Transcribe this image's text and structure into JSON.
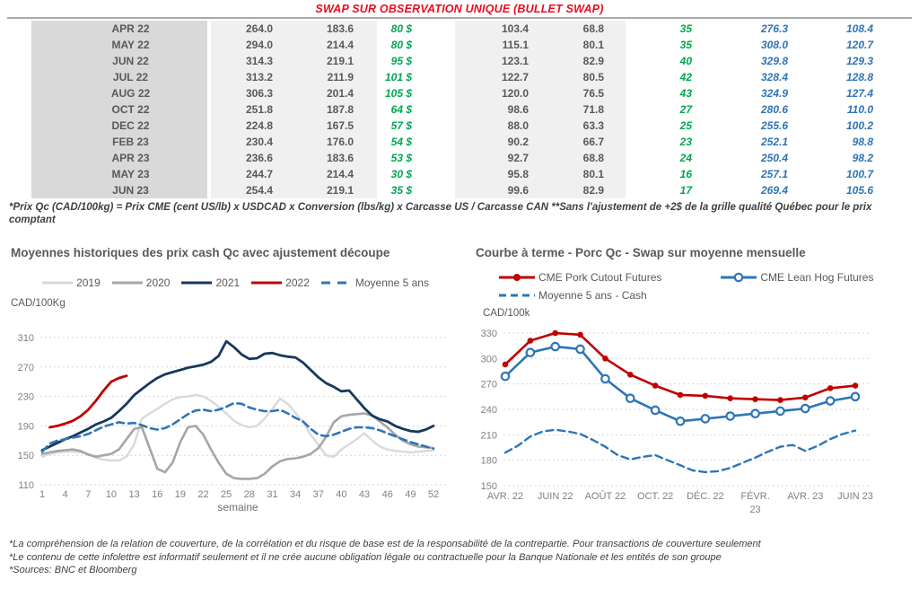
{
  "title": "SWAP SUR OBSERVATION UNIQUE (BULLET SWAP)",
  "table": {
    "rows": [
      {
        "month": "APR 22",
        "c1": "264.0",
        "c2": "183.6",
        "green1": "80 $",
        "c4": "103.4",
        "c5": "68.8",
        "green2": "35",
        "blue1": "276.3",
        "blue2": "108.4"
      },
      {
        "month": "MAY 22",
        "c1": "294.0",
        "c2": "214.4",
        "green1": "80 $",
        "c4": "115.1",
        "c5": "80.1",
        "green2": "35",
        "blue1": "308.0",
        "blue2": "120.7"
      },
      {
        "month": "JUN 22",
        "c1": "314.3",
        "c2": "219.1",
        "green1": "95 $",
        "c4": "123.1",
        "c5": "82.9",
        "green2": "40",
        "blue1": "329.8",
        "blue2": "129.3"
      },
      {
        "month": "JUL 22",
        "c1": "313.2",
        "c2": "211.9",
        "green1": "101 $",
        "c4": "122.7",
        "c5": "80.5",
        "green2": "42",
        "blue1": "328.4",
        "blue2": "128.8"
      },
      {
        "month": "AUG 22",
        "c1": "306.3",
        "c2": "201.4",
        "green1": "105 $",
        "c4": "120.0",
        "c5": "76.5",
        "green2": "43",
        "blue1": "324.9",
        "blue2": "127.4"
      },
      {
        "month": "OCT 22",
        "c1": "251.8",
        "c2": "187.8",
        "green1": "64 $",
        "c4": "98.6",
        "c5": "71.8",
        "green2": "27",
        "blue1": "280.6",
        "blue2": "110.0"
      },
      {
        "month": "DEC 22",
        "c1": "224.8",
        "c2": "167.5",
        "green1": "57 $",
        "c4": "88.0",
        "c5": "63.3",
        "green2": "25",
        "blue1": "255.6",
        "blue2": "100.2"
      },
      {
        "month": "FEB 23",
        "c1": "230.4",
        "c2": "176.0",
        "green1": "54 $",
        "c4": "90.2",
        "c5": "66.7",
        "green2": "23",
        "blue1": "252.1",
        "blue2": "98.8"
      },
      {
        "month": "APR 23",
        "c1": "236.6",
        "c2": "183.6",
        "green1": "53 $",
        "c4": "92.7",
        "c5": "68.8",
        "green2": "24",
        "blue1": "250.4",
        "blue2": "98.2"
      },
      {
        "month": "MAY 23",
        "c1": "244.7",
        "c2": "214.4",
        "green1": "30 $",
        "c4": "95.8",
        "c5": "80.1",
        "green2": "16",
        "blue1": "257.1",
        "blue2": "100.7"
      },
      {
        "month": "JUN 23",
        "c1": "254.4",
        "c2": "219.1",
        "green1": "35 $",
        "c4": "99.6",
        "c5": "82.9",
        "green2": "17",
        "blue1": "269.4",
        "blue2": "105.6"
      }
    ]
  },
  "table_footnote": "*Prix Qc (CAD/100kg) = Prix CME (cent US/lb) x USDCAD x Conversion (lbs/kg) x Carcasse US / Carcasse CAN **Sans l'ajustement de +2$ de la grille qualité Québec pour le prix comptant",
  "footnotes": [
    "*La compréhension de la relation de couverture, de la corrélation et du risque de base est de la responsabilité de la contrepartie. Pour transactions de couverture seulement",
    "*Le contenu de cette infolettre est informatif seulement et il ne crée aucune obligation légale ou contractuelle pour la Banque Nationale et les entités de son groupe",
    "*Sources: BNC et Bloomberg"
  ],
  "colors": {
    "title_red": "#ea0c1e",
    "green_value": "#00a651",
    "blue_value": "#2e74b5",
    "navy_line": "#17375e",
    "red_line": "#c00000",
    "blue_line": "#2e75b6",
    "gray_2020": "#a6a6a6",
    "gray_2019": "#d9d9d9"
  },
  "chart_data": [
    {
      "type": "line",
      "title": "Moyennes historiques des prix cash Qc avec ajustement découpe",
      "ylabel": "CAD/100Kg",
      "xlabel": "semaine",
      "ylim": [
        110,
        310
      ],
      "yticks": [
        110,
        150,
        190,
        230,
        270,
        310
      ],
      "xlim": [
        1,
        52
      ],
      "xticks": [
        1,
        4,
        7,
        10,
        13,
        16,
        19,
        22,
        25,
        28,
        31,
        34,
        37,
        40,
        43,
        46,
        49,
        52
      ],
      "grid": true,
      "legend_position": "top",
      "series": [
        {
          "name": "2019",
          "color": "#d9d9d9",
          "swatch": "solid",
          "width": 2.4,
          "xstart": 1,
          "values": [
            148,
            152,
            154,
            155,
            155,
            154,
            152,
            147,
            144,
            143,
            143,
            148,
            165,
            200,
            207,
            213,
            220,
            226,
            229,
            230,
            232,
            230,
            224,
            216,
            207,
            197,
            191,
            188,
            190,
            200,
            213,
            227,
            220,
            208,
            195,
            178,
            164,
            150,
            148,
            158,
            165,
            172,
            180,
            170,
            162,
            158,
            156,
            155,
            154,
            155,
            156,
            157
          ]
        },
        {
          "name": "2020",
          "color": "#a6a6a6",
          "swatch": "solid",
          "width": 2.6,
          "xstart": 1,
          "values": [
            152,
            154,
            156,
            157,
            158,
            156,
            151,
            148,
            150,
            152,
            158,
            172,
            186,
            188,
            160,
            132,
            127,
            140,
            168,
            188,
            190,
            178,
            158,
            140,
            125,
            119,
            118,
            118,
            119,
            125,
            135,
            142,
            145,
            146,
            148,
            152,
            160,
            175,
            195,
            203,
            205,
            206,
            207,
            204,
            196,
            188,
            178,
            170,
            165,
            162,
            161,
            160
          ]
        },
        {
          "name": "2021",
          "color": "#17375e",
          "swatch": "solid",
          "width": 2.8,
          "xstart": 1,
          "values": [
            157,
            162,
            167,
            172,
            176,
            181,
            186,
            192,
            196,
            201,
            210,
            220,
            232,
            240,
            248,
            255,
            260,
            263,
            266,
            269,
            271,
            273,
            277,
            285,
            305,
            297,
            287,
            281,
            282,
            288,
            289,
            286,
            284,
            283,
            276,
            266,
            256,
            248,
            243,
            237,
            238,
            226,
            214,
            204,
            199,
            196,
            190,
            186,
            183,
            182,
            185,
            190
          ]
        },
        {
          "name": "2022",
          "color": "#c00000",
          "swatch": "solid",
          "width": 2.8,
          "xstart": 2,
          "values": [
            188,
            190,
            193,
            197,
            203,
            212,
            224,
            238,
            250,
            255,
            258
          ]
        },
        {
          "name": "Moyenne 5 ans",
          "color": "#2e75b6",
          "swatch": "dashed",
          "dash": "8 5",
          "width": 2.6,
          "xstart": 1,
          "values": [
            155,
            166,
            170,
            172,
            174,
            176,
            179,
            184,
            189,
            192,
            195,
            193,
            194,
            191,
            187,
            185,
            187,
            192,
            199,
            206,
            211,
            212,
            210,
            212,
            216,
            221,
            220,
            215,
            212,
            210,
            210,
            212,
            207,
            201,
            196,
            186,
            178,
            176,
            178,
            182,
            186,
            188,
            188,
            187,
            184,
            180,
            176,
            172,
            168,
            165,
            162,
            159
          ]
        }
      ]
    },
    {
      "type": "line",
      "title": "Courbe à terme - Porc Qc - Swap sur moyenne mensuelle",
      "ylabel": "CAD/100k",
      "xlabel": "",
      "ylim": [
        150,
        330
      ],
      "yticks": [
        150,
        180,
        210,
        240,
        270,
        300,
        330
      ],
      "xlim": [
        0,
        14
      ],
      "xtick_labels": [
        {
          "x": 0,
          "lines": [
            "AVR. 22"
          ]
        },
        {
          "x": 2,
          "lines": [
            "JUIN 22"
          ]
        },
        {
          "x": 4,
          "lines": [
            "AOÛT 22"
          ]
        },
        {
          "x": 6,
          "lines": [
            "OCT. 22"
          ]
        },
        {
          "x": 8,
          "lines": [
            "DÉC. 22"
          ]
        },
        {
          "x": 10,
          "lines": [
            "FÉVR.",
            "23"
          ]
        },
        {
          "x": 12,
          "lines": [
            "AVR. 23"
          ]
        },
        {
          "x": 14,
          "lines": [
            "JUIN 23"
          ]
        }
      ],
      "grid": true,
      "legend_position": "top",
      "series": [
        {
          "name": "CME Pork Cutout Futures",
          "color": "#c00000",
          "swatch": "solid",
          "marker": "dot",
          "width": 2.6,
          "xstart": 0,
          "step": 1,
          "values": [
            293,
            321,
            330,
            328,
            300,
            281,
            268,
            257,
            256,
            253,
            252,
            251,
            254,
            265,
            268
          ]
        },
        {
          "name": "CME Lean Hog Futures",
          "color": "#2e75b6",
          "swatch": "solid",
          "marker": "circle",
          "width": 2.6,
          "xstart": 0,
          "step": 1,
          "values": [
            279,
            307,
            314,
            311,
            276,
            253,
            239,
            226,
            229,
            232,
            235,
            238,
            241,
            250,
            255
          ]
        },
        {
          "name": "Moyenne 5 ans - Cash",
          "color": "#2e75b6",
          "swatch": "dashed",
          "dash": "8 5",
          "width": 2.4,
          "xstart": 0,
          "step": 0.5,
          "values": [
            189,
            197,
            208,
            214,
            216,
            214,
            211,
            204,
            196,
            186,
            181,
            184,
            186,
            180,
            174,
            168,
            166,
            167,
            171,
            177,
            183,
            190,
            196,
            198,
            191,
            197,
            205,
            211,
            215
          ]
        }
      ]
    }
  ]
}
